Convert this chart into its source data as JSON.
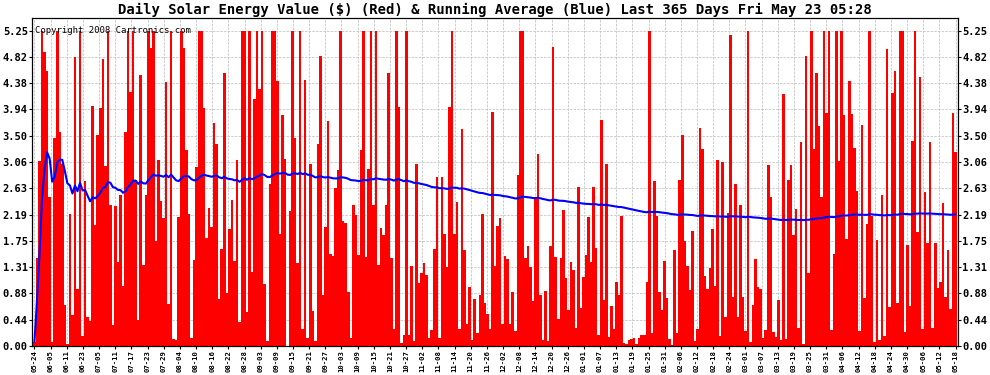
{
  "title": "Daily Solar Energy Value ($) (Red) & Running Average (Blue) Last 365 Days Fri May 23 05:28",
  "copyright": "Copyright 2008 Cartronics.com",
  "yticks": [
    0.0,
    0.44,
    0.88,
    1.31,
    1.75,
    2.19,
    2.63,
    3.06,
    3.5,
    3.94,
    4.38,
    4.82,
    5.25
  ],
  "ylim": [
    0.0,
    5.46
  ],
  "bar_color": "#FF0000",
  "avg_color": "#0000FF",
  "bg_color": "#FFFFFF",
  "grid_color": "#BBBBBB",
  "title_fontsize": 10,
  "copyright_fontsize": 6.5,
  "num_days": 365,
  "xtick_labels": [
    "05-24",
    "06-05",
    "06-11",
    "06-23",
    "07-05",
    "07-11",
    "07-17",
    "07-23",
    "07-29",
    "08-04",
    "08-10",
    "08-16",
    "08-22",
    "08-28",
    "09-03",
    "09-09",
    "09-15",
    "09-21",
    "09-27",
    "10-03",
    "10-09",
    "10-15",
    "10-21",
    "10-27",
    "11-02",
    "11-08",
    "11-14",
    "11-20",
    "11-26",
    "12-02",
    "12-08",
    "12-14",
    "12-20",
    "12-26",
    "01-01",
    "01-07",
    "01-13",
    "01-19",
    "01-25",
    "01-31",
    "02-06",
    "02-12",
    "02-18",
    "02-24",
    "03-01",
    "03-07",
    "03-13",
    "03-19",
    "03-25",
    "03-31",
    "04-06",
    "04-12",
    "04-18",
    "04-24",
    "04-30",
    "05-06",
    "05-12",
    "05-18"
  ]
}
